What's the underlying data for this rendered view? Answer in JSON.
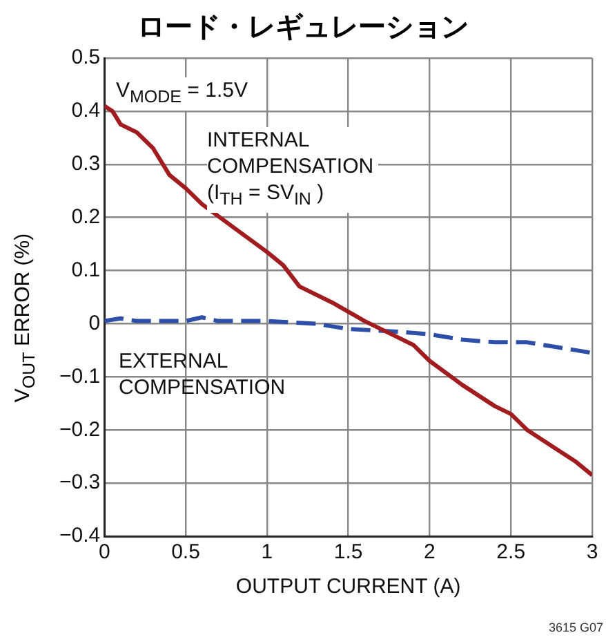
{
  "chart_data": {
    "type": "line",
    "title": "ロード・レギュレーション",
    "xlabel": "OUTPUT CURRENT (A)",
    "ylabel": "V$_{OUT}$ ERROR (%)",
    "xlim": [
      0,
      3
    ],
    "xticks": [
      0,
      0.5,
      1,
      1.5,
      2,
      2.5,
      3
    ],
    "ylim": [
      -0.4,
      0.5
    ],
    "yticks": [
      {
        "value": -0.4,
        "label": "−0.4"
      },
      {
        "value": -0.3,
        "label": "−0.3"
      },
      {
        "value": -0.2,
        "label": "−0.2"
      },
      {
        "value": -0.1,
        "label": "−0.1"
      },
      0,
      0.1,
      0.2,
      0.3,
      0.4,
      0.5
    ],
    "grid": true,
    "legend": false,
    "marker": "none",
    "series": [
      {
        "color": "#a01c1f",
        "line_style": "solid",
        "x": [
          0,
          0.05,
          0.1,
          0.2,
          0.3,
          0.4,
          0.5,
          0.6,
          0.8,
          1.0,
          1.1,
          1.2,
          1.4,
          1.6,
          1.8,
          1.9,
          2.0,
          2.2,
          2.4,
          2.5,
          2.6,
          2.8,
          2.9,
          3.0
        ],
        "values": [
          0.41,
          0.4,
          0.375,
          0.36,
          0.33,
          0.28,
          0.255,
          0.225,
          0.18,
          0.135,
          0.11,
          0.07,
          0.04,
          0.005,
          -0.025,
          -0.04,
          -0.07,
          -0.115,
          -0.155,
          -0.17,
          -0.2,
          -0.24,
          -0.26,
          -0.285
        ]
      },
      {
        "color": "#2e4fa8",
        "line_style": "dashed",
        "x": [
          0,
          0.1,
          0.2,
          0.5,
          0.6,
          0.7,
          1.0,
          1.3,
          1.5,
          1.8,
          2.0,
          2.2,
          2.4,
          2.6,
          2.8,
          3.0
        ],
        "values": [
          0.005,
          0.01,
          0.005,
          0.005,
          0.012,
          0.005,
          0.005,
          0,
          -0.01,
          -0.015,
          -0.02,
          -0.03,
          -0.035,
          -0.035,
          -0.045,
          -0.055
        ]
      }
    ],
    "annotations": [
      "V$_{MODE}$ = 1.5V",
      "INTERNAL\nCOMPENSATION\n(I$_{TH}$ = SV$_{IN}$ )",
      "EXTERNAL\nCOMPENSATION",
      "3615 G07"
    ]
  }
}
